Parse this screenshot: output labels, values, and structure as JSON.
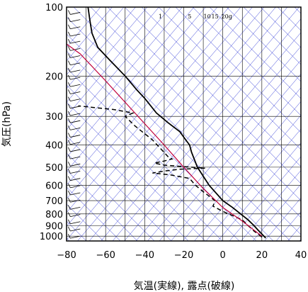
{
  "chart_data": {
    "type": "line",
    "xlabel": "気温(実線), 露点(破線)",
    "ylabel": "気圧(hPa)",
    "xlim": [
      -80,
      40
    ],
    "ylim": [
      1050,
      100
    ],
    "y_scale": "log",
    "x_ticks": [
      "−80",
      "−60",
      "−40",
      "−20",
      "0",
      "20",
      "40"
    ],
    "x_tick_values": [
      -80,
      -60,
      -40,
      -20,
      0,
      20,
      40
    ],
    "y_ticks": [
      "100",
      "200",
      "300",
      "400",
      "500",
      "600",
      "700",
      "800",
      "900",
      "1000"
    ],
    "y_tick_values": [
      100,
      200,
      300,
      400,
      500,
      600,
      700,
      800,
      900,
      1000
    ],
    "mixing_ratio_labels": [
      "1",
      "5",
      "10",
      "15",
      "20g"
    ],
    "colors": {
      "temperature": "#000000",
      "dewpoint": "#000000",
      "parcel": "#c0003c",
      "grid": "#000000",
      "isotherm_adiabat": "#2f38d6"
    },
    "series": [
      {
        "name": "",
        "role": "temperature",
        "style": "solid",
        "points": [
          [
            22,
            1020
          ],
          [
            18,
            940
          ],
          [
            16,
            900
          ],
          [
            13,
            850
          ],
          [
            5,
            750
          ],
          [
            0,
            700
          ],
          [
            -7,
            600
          ],
          [
            -13,
            500
          ],
          [
            -16,
            430
          ],
          [
            -17,
            400
          ],
          [
            -19,
            380
          ],
          [
            -22,
            350
          ],
          [
            -28,
            320
          ],
          [
            -34,
            290
          ],
          [
            -40,
            250
          ],
          [
            -44,
            230
          ],
          [
            -50,
            200
          ],
          [
            -58,
            170
          ],
          [
            -64,
            150
          ],
          [
            -67,
            130
          ],
          [
            -68,
            115
          ],
          [
            -69,
            100
          ]
        ]
      },
      {
        "name": "",
        "role": "dewpoint",
        "style": "dashed",
        "points": [
          [
            20,
            1010
          ],
          [
            16,
            950
          ],
          [
            13,
            900
          ],
          [
            10,
            850
          ],
          [
            0,
            780
          ],
          [
            -5,
            740
          ],
          [
            -4,
            700
          ],
          [
            -10,
            640
          ],
          [
            -14,
            600
          ],
          [
            -17,
            560
          ],
          [
            -27,
            540
          ],
          [
            -36,
            530
          ],
          [
            -30,
            520
          ],
          [
            -22,
            510
          ],
          [
            -9,
            505
          ],
          [
            -30,
            490
          ],
          [
            -35,
            480
          ],
          [
            -30,
            470
          ],
          [
            -26,
            460
          ],
          [
            -28,
            450
          ],
          [
            -36,
            380
          ],
          [
            -45,
            330
          ],
          [
            -50,
            300
          ],
          [
            -46,
            290
          ],
          [
            -56,
            280
          ],
          [
            -74,
            270
          ]
        ]
      },
      {
        "name": "",
        "role": "parcel",
        "style": "solid",
        "points": [
          [
            20,
            1000
          ],
          [
            10,
            860
          ],
          [
            0,
            750
          ],
          [
            -10,
            620
          ],
          [
            -20,
            500
          ],
          [
            -30,
            400
          ],
          [
            -45,
            290
          ],
          [
            -60,
            210
          ],
          [
            -73,
            160
          ],
          [
            -80,
            145
          ]
        ]
      }
    ],
    "wind_barbs": "shown along left edge at x = -73 from 1000 to 100 hPa"
  }
}
